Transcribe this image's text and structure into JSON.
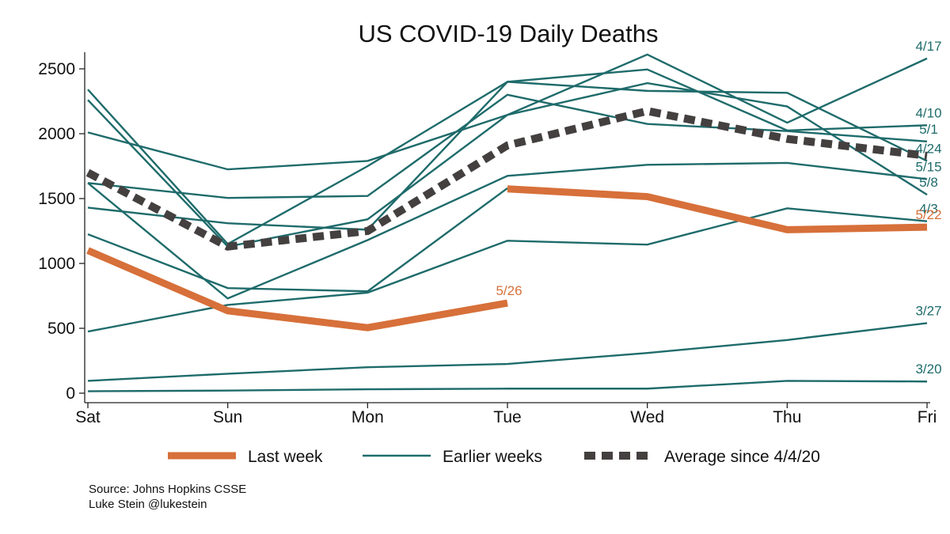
{
  "chart_data": {
    "type": "line",
    "title": "US COVID-19 Daily Deaths",
    "xlabel": "",
    "ylabel": "",
    "categories": [
      "Sat",
      "Sun",
      "Mon",
      "Tue",
      "Wed",
      "Thu",
      "Fri"
    ],
    "yticks": [
      0,
      500,
      1000,
      1500,
      2000,
      2500
    ],
    "ylim": [
      0,
      2600
    ],
    "grid": false,
    "colors": {
      "last_week": "#d7703a",
      "earlier_weeks": "#1f6b6b",
      "average": "#444040"
    },
    "series": [
      {
        "name": "3/20",
        "kind": "earlier",
        "label_color": "earlier",
        "values": [
          15,
          20,
          30,
          35,
          35,
          95,
          90
        ]
      },
      {
        "name": "3/27",
        "kind": "earlier",
        "label_color": "earlier",
        "values": [
          95,
          150,
          200,
          225,
          310,
          410,
          540
        ]
      },
      {
        "name": "4/3",
        "kind": "earlier",
        "label_color": "earlier",
        "values": [
          475,
          680,
          775,
          1175,
          1145,
          1425,
          1325
        ]
      },
      {
        "name": "4/10",
        "kind": "earlier",
        "label_color": "earlier",
        "values": [
          1430,
          1310,
          1260,
          2400,
          2495,
          2025,
          2065
        ]
      },
      {
        "name": "4/17",
        "kind": "earlier",
        "label_color": "earlier",
        "values": [
          2010,
          1725,
          1790,
          2145,
          2610,
          2085,
          2580
        ]
      },
      {
        "name": "4/24",
        "kind": "earlier",
        "label_color": "earlier",
        "values": [
          2340,
          1150,
          1750,
          2400,
          2330,
          2315,
          1790
        ]
      },
      {
        "name": "5/1",
        "kind": "earlier",
        "label_color": "earlier",
        "values": [
          1620,
          1505,
          1520,
          2300,
          2075,
          2020,
          1940
        ]
      },
      {
        "name": "5/8",
        "kind": "earlier",
        "label_color": "earlier",
        "values": [
          2260,
          1130,
          1340,
          2145,
          2390,
          2210,
          1530
        ]
      },
      {
        "name": "5/15",
        "kind": "earlier",
        "label_color": "earlier",
        "values": [
          1620,
          730,
          1180,
          1675,
          1760,
          1775,
          1650
        ]
      },
      {
        "name": "5/22 (Sat-Tue)",
        "kind": "earlier",
        "label_color": "none",
        "values": [
          1225,
          810,
          785,
          1580,
          null,
          null,
          null
        ]
      },
      {
        "name": "5/22",
        "kind": "last",
        "label_color": "last",
        "values": [
          null,
          null,
          null,
          1575,
          1515,
          1260,
          1280
        ]
      },
      {
        "name": "5/26",
        "kind": "last",
        "label_color": "last",
        "values": [
          1100,
          635,
          505,
          695,
          null,
          null,
          null
        ]
      },
      {
        "name": "Average since 4/4/20",
        "kind": "average",
        "label_color": "none",
        "values": [
          1700,
          1130,
          1250,
          1910,
          2175,
          1960,
          1830
        ]
      }
    ],
    "end_labels": [
      "4/17",
      "4/10",
      "5/1",
      "4/24",
      "5/15",
      "5/8",
      "4/3",
      "5/22",
      "5/26",
      "3/27",
      "3/20"
    ],
    "legend": {
      "placement": "bottom",
      "items": [
        {
          "label": "Last week",
          "kind": "last"
        },
        {
          "label": "Earlier weeks",
          "kind": "earlier"
        },
        {
          "label": "Average since 4/4/20",
          "kind": "average"
        }
      ]
    }
  },
  "footer": {
    "source": "Source: Johns Hopkins CSSE",
    "author": "Luke Stein @lukestein"
  }
}
